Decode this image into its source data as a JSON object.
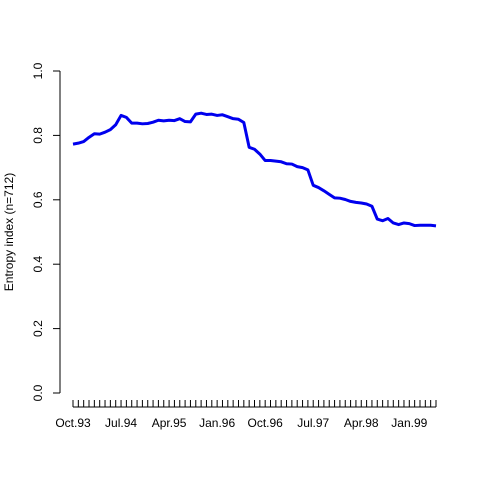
{
  "chart_data": {
    "type": "line",
    "title": "",
    "xlabel": "",
    "ylabel": "Entropy index (n=712)",
    "ylim": [
      0,
      1
    ],
    "yticks": [
      "0.0",
      "0.2",
      "0.4",
      "0.6",
      "0.8",
      "1.0"
    ],
    "xtick_labels": [
      "Oct.93",
      "Jul.94",
      "Apr.95",
      "Jan.96",
      "Oct.96",
      "Jul.97",
      "Apr.98",
      "Jan.99"
    ],
    "xtick_label_month_index": [
      0,
      9,
      18,
      27,
      36,
      45,
      54,
      63
    ],
    "x_start": "Oct.93",
    "line_color": "#0000ee",
    "grid": false,
    "series": [
      {
        "values": [
          0.773,
          0.776,
          0.781,
          0.794,
          0.805,
          0.804,
          0.81,
          0.818,
          0.833,
          0.862,
          0.856,
          0.838,
          0.838,
          0.836,
          0.837,
          0.841,
          0.847,
          0.845,
          0.847,
          0.846,
          0.852,
          0.843,
          0.842,
          0.866,
          0.869,
          0.865,
          0.866,
          0.862,
          0.864,
          0.858,
          0.852,
          0.85,
          0.84,
          0.763,
          0.757,
          0.742,
          0.722,
          0.722,
          0.72,
          0.718,
          0.712,
          0.711,
          0.703,
          0.7,
          0.693,
          0.645,
          0.638,
          0.628,
          0.617,
          0.606,
          0.605,
          0.601,
          0.595,
          0.592,
          0.59,
          0.587,
          0.58,
          0.54,
          0.535,
          0.542,
          0.528,
          0.523,
          0.528,
          0.526,
          0.52,
          0.521,
          0.521,
          0.521,
          0.519
        ]
      }
    ]
  }
}
